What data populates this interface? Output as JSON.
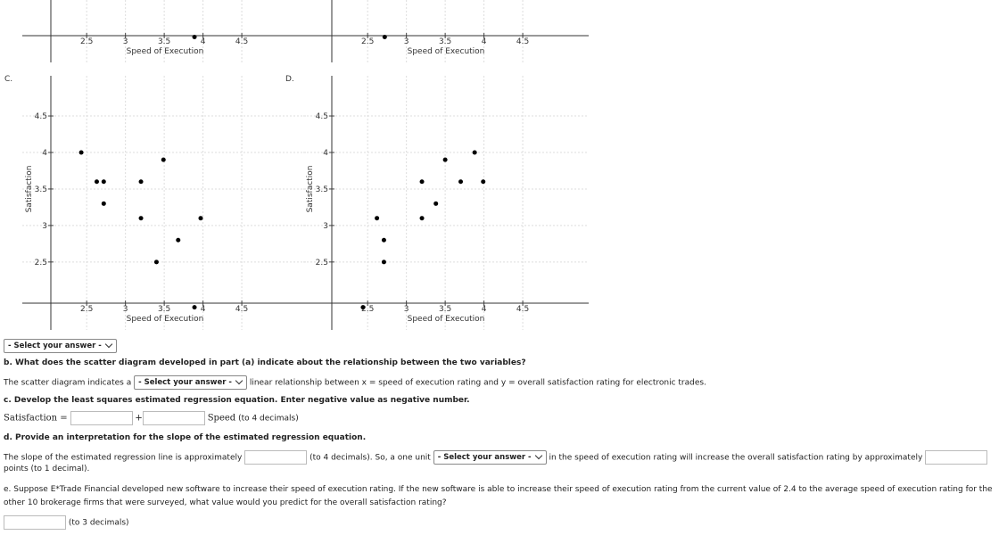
{
  "plots": [
    {
      "xlabel": "Speed of Execution",
      "xticks": [
        2.5,
        3,
        3.5,
        4,
        4.5
      ],
      "xlim": [
        1.67,
        5.35
      ],
      "ylim": [
        1.57,
        2.43
      ],
      "points": {
        "x": [
          3.89
        ],
        "y": [
          1.92
        ]
      }
    },
    {
      "xlabel": "Speed of Execution",
      "xticks": [
        2.5,
        3,
        3.5,
        4,
        4.5
      ],
      "xlim": [
        1.67,
        5.35
      ],
      "ylim": [
        1.57,
        2.43
      ],
      "points": {
        "x": [
          2.72
        ],
        "y": [
          1.92
        ]
      }
    },
    {
      "label": "C.",
      "ylabel": "Satisfaction",
      "xlabel": "Speed of Execution",
      "xticks": [
        2.5,
        3,
        3.5,
        4,
        4.5
      ],
      "yticks": [
        2.5,
        3,
        3.5,
        4,
        4.5
      ],
      "xlim": [
        1.67,
        5.35
      ],
      "ylim": [
        1.57,
        5.05
      ],
      "points": {
        "x": [
          2.43,
          2.63,
          2.72,
          2.72,
          3.2,
          3.2,
          3.49,
          3.4,
          3.68,
          3.97,
          3.89
        ],
        "y": [
          4.0,
          3.6,
          3.6,
          3.3,
          3.6,
          3.1,
          3.9,
          2.5,
          2.8,
          3.1,
          1.88
        ]
      }
    },
    {
      "label": "D.",
      "ylabel": "Satisfaction",
      "xlabel": "Speed of Execution",
      "xticks": [
        2.5,
        3,
        3.5,
        4,
        4.5
      ],
      "yticks": [
        2.5,
        3,
        3.5,
        4,
        4.5
      ],
      "xlim": [
        1.67,
        5.35
      ],
      "ylim": [
        1.57,
        5.05
      ],
      "points": {
        "x": [
          2.62,
          2.71,
          2.71,
          3.2,
          3.2,
          3.38,
          3.5,
          3.7,
          3.88,
          3.99,
          2.44
        ],
        "y": [
          3.1,
          2.8,
          2.5,
          3.6,
          3.1,
          3.3,
          3.9,
          3.6,
          4.0,
          3.6,
          1.88
        ]
      }
    }
  ],
  "part_a_select": "- Select your answer -",
  "b": {
    "prompt": "b. What does the scatter diagram developed in part (a) indicate about the relationship between the two variables?",
    "before": "The scatter diagram indicates a",
    "select": "- Select your answer -",
    "after": "linear relationship between x = speed of execution rating and y = overall satisfaction rating for electronic trades."
  },
  "c": {
    "prompt": "c. Develop the least squares estimated regression equation. Enter negative value as negative number.",
    "lhs": "Satisfaction =",
    "plus": "+",
    "rhs": "Speed",
    "note": "(to 4 decimals)"
  },
  "d": {
    "prompt": "d. Provide an interpretation for the slope of the estimated regression equation.",
    "before": "The slope of the estimated regression line is approximately",
    "middle": "(to 4 decimals). So, a one unit",
    "select": "- Select your answer -",
    "after": "in the speed of execution rating will increase the overall satisfaction rating by approximately",
    "end": "points (to 1 decimal)."
  },
  "e": {
    "prompt": "e. Suppose E*Trade Financial developed new software to increase their speed of execution rating. If the new software is able to increase their speed of execution rating from the current value of 2.4 to the average speed of execution rating for the other 10 brokerage firms that were surveyed, what value would you predict for the overall satisfaction rating?",
    "note": "(to 3 decimals)"
  }
}
